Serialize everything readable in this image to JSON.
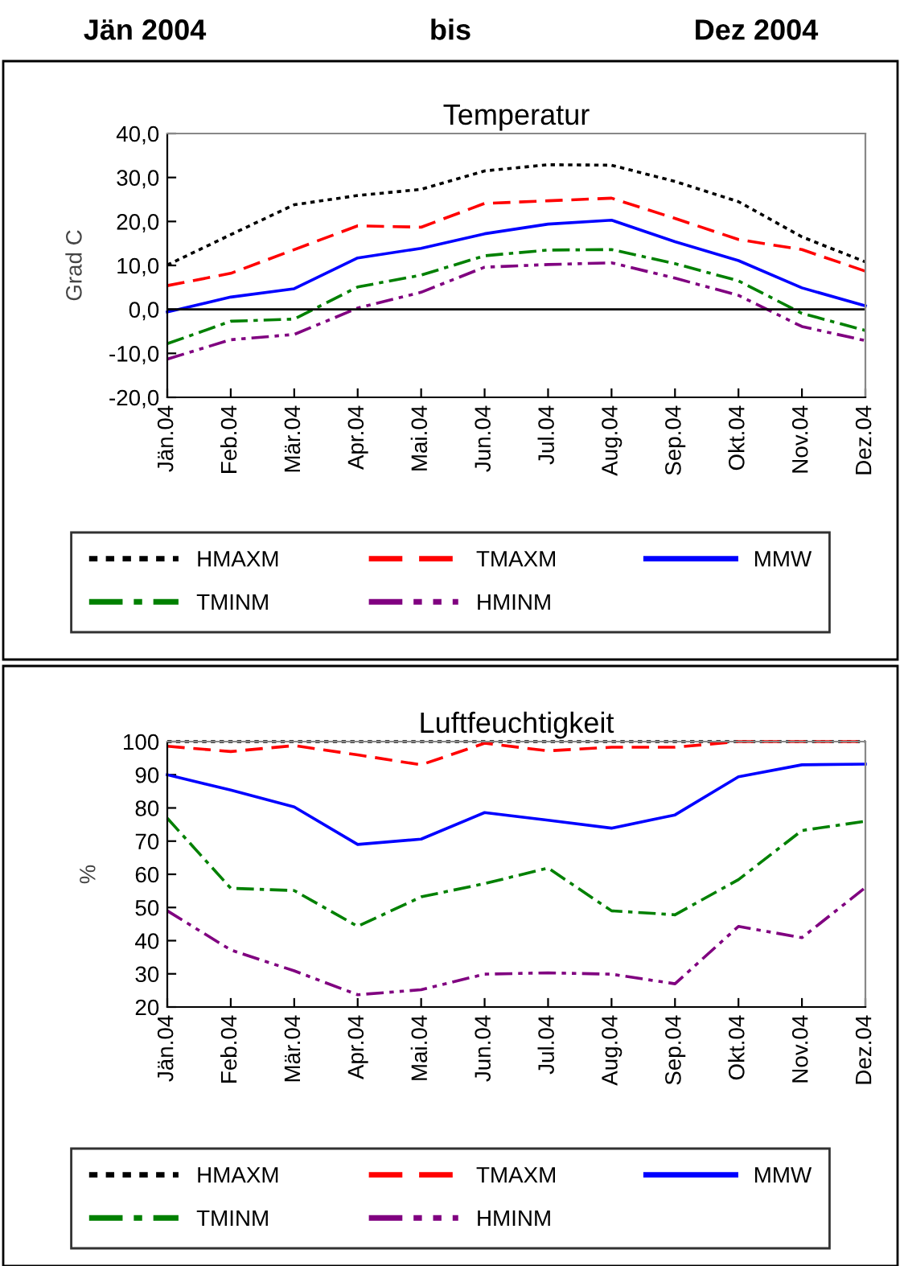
{
  "chart_data": [
    {
      "type": "line",
      "title": "Temperatur",
      "ylabel": "Grad C",
      "annotations": [
        "Jän 2004",
        "bis",
        "Dez 2004"
      ],
      "categories": [
        "Jän.04",
        "Feb.04",
        "Mär.04",
        "Apr.04",
        "Mai.04",
        "Jun.04",
        "Jul.04",
        "Aug.04",
        "Sep.04",
        "Okt.04",
        "Nov.04",
        "Dez.04"
      ],
      "ylim": [
        -20,
        40
      ],
      "yticks": [
        {
          "value": -20,
          "label": "-20,0"
        },
        {
          "value": -10,
          "label": "-10,0"
        },
        {
          "value": 0,
          "label": "0,0"
        },
        {
          "value": 10,
          "label": "10,0"
        },
        {
          "value": 20,
          "label": "20,0"
        },
        {
          "value": 30,
          "label": "30,0"
        },
        {
          "value": 40,
          "label": "40,0"
        }
      ],
      "ref_lines": [
        {
          "axis": "y",
          "value": 0,
          "color": "#000000"
        }
      ],
      "grid": false,
      "legend": "bottom",
      "marker": "none",
      "series": [
        {
          "name": "HMAXM",
          "color": "#000000",
          "line_style": "dotted",
          "values": [
            10.1,
            17,
            23.8,
            25.9,
            27.3,
            31.5,
            32.9,
            32.8,
            29.1,
            24.5,
            16.5,
            10.8
          ]
        },
        {
          "name": "TMAXM",
          "color": "#ff0000",
          "line_style": "dashed",
          "values": [
            5.4,
            8.2,
            13.6,
            19,
            18.7,
            24.1,
            24.7,
            25.3,
            20.7,
            15.9,
            13.6,
            8.7
          ]
        },
        {
          "name": "MMW",
          "color": "#0000ff",
          "line_style": "solid",
          "values": [
            -0.6,
            2.8,
            4.7,
            11.7,
            13.9,
            17.2,
            19.4,
            20.3,
            15.4,
            11.1,
            4.9,
            0.8
          ]
        },
        {
          "name": "TMINM",
          "color": "#008000",
          "line_style": "dashdot",
          "values": [
            -7.8,
            -2.7,
            -2.2,
            5.1,
            7.8,
            12.2,
            13.5,
            13.6,
            10.4,
            6.5,
            -0.9,
            -4.8
          ]
        },
        {
          "name": "HMINM",
          "color": "#800080",
          "line_style": "dashdotdot",
          "values": [
            -11.3,
            -6.9,
            -5.7,
            0.3,
            3.9,
            9.6,
            10.2,
            10.6,
            7.1,
            3.2,
            -3.9,
            -7.1
          ]
        }
      ]
    },
    {
      "type": "line",
      "title": "Luftfeuchtigkeit",
      "ylabel": "%",
      "categories": [
        "Jän.04",
        "Feb.04",
        "Mär.04",
        "Apr.04",
        "Mai.04",
        "Jun.04",
        "Jul.04",
        "Aug.04",
        "Sep.04",
        "Okt.04",
        "Nov.04",
        "Dez.04"
      ],
      "ylim": [
        20,
        100
      ],
      "yticks": [
        20,
        30,
        40,
        50,
        60,
        70,
        80,
        90,
        100
      ],
      "grid": false,
      "legend": "bottom",
      "marker": "none",
      "series": [
        {
          "name": "HMAXM",
          "color": "#000000",
          "line_style": "dotted",
          "values": [
            100,
            100,
            100,
            100,
            100,
            100,
            100,
            100,
            100,
            100,
            100,
            100
          ]
        },
        {
          "name": "TMAXM",
          "color": "#ff0000",
          "line_style": "dashed",
          "values": [
            98.6,
            97,
            98.8,
            96,
            93,
            99.5,
            97.2,
            98.3,
            98.3,
            100,
            100,
            100
          ]
        },
        {
          "name": "MMW",
          "color": "#0000ff",
          "line_style": "solid",
          "values": [
            90,
            85.4,
            80.3,
            69,
            70.6,
            78.6,
            76.3,
            73.9,
            77.9,
            89.4,
            93,
            93.2
          ]
        },
        {
          "name": "TMINM",
          "color": "#008000",
          "line_style": "dashdot",
          "values": [
            76.9,
            55.8,
            55.1,
            44.3,
            53.2,
            57.2,
            61.9,
            49,
            47.8,
            58.4,
            73.2,
            76
          ]
        },
        {
          "name": "HMINM",
          "color": "#800080",
          "line_style": "dashdotdot",
          "values": [
            49,
            37.2,
            30.9,
            23.7,
            25.2,
            29.9,
            30.3,
            29.9,
            27,
            44.3,
            40.9,
            56
          ]
        }
      ]
    }
  ]
}
